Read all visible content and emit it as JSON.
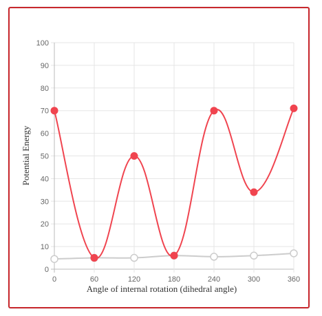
{
  "chart_data": {
    "type": "line",
    "title": "",
    "xlabel": "Angle of internal rotation (dihedral angle)",
    "ylabel": "Potential Energy",
    "x": [
      0,
      60,
      120,
      180,
      240,
      300,
      360
    ],
    "x_ticks": [
      "0",
      "60",
      "120",
      "180",
      "240",
      "300",
      "360"
    ],
    "y_ticks": [
      "0",
      "10",
      "20",
      "30",
      "40",
      "50",
      "60",
      "70",
      "80",
      "90",
      "100"
    ],
    "xlim": [
      0,
      360
    ],
    "ylim": [
      0,
      100
    ],
    "grid": true,
    "series": [
      {
        "values": [
          70,
          5,
          50,
          6,
          70,
          34,
          71
        ],
        "color": "#f0444f",
        "marker": "filled"
      },
      {
        "values": [
          4.5,
          5,
          5,
          6,
          5.5,
          6,
          7
        ],
        "color": "#cccccc",
        "marker": "hollow"
      }
    ]
  },
  "frame_color": "#c8272c"
}
